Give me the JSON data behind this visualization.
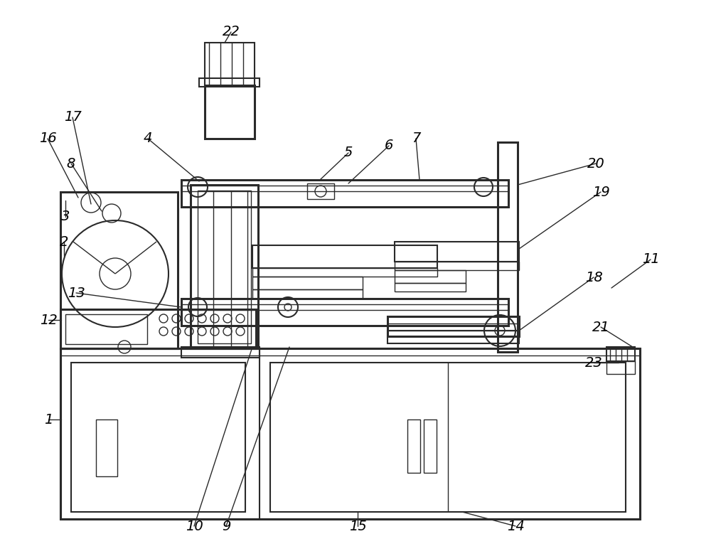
{
  "bg_color": "#ffffff",
  "lc": "#2a2a2a",
  "lw_heavy": 2.2,
  "lw_med": 1.5,
  "lw_thin": 1.0,
  "figsize": [
    10.0,
    7.75
  ],
  "dpi": 100
}
